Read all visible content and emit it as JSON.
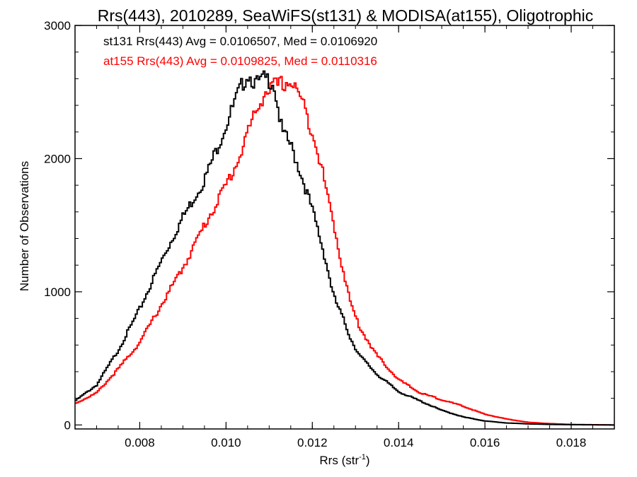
{
  "chart_data": {
    "type": "line",
    "title": "Rrs(443), 2010289, SeaWiFS(st131) & MODISA(at155), Oligotrophic",
    "xlabel": "Rrs (str",
    "xlabel_sup": "-1",
    "xlabel_end": ")",
    "ylabel": "Number of Observations",
    "xlim": [
      0.0065,
      0.019
    ],
    "ylim": [
      -30,
      3000
    ],
    "xticks": [
      0.008,
      0.01,
      0.012,
      0.014,
      0.016,
      0.018
    ],
    "xtick_labels": [
      "0.008",
      "0.010",
      "0.012",
      "0.014",
      "0.016",
      "0.018"
    ],
    "yticks": [
      0,
      1000,
      2000,
      3000
    ],
    "ytick_labels": [
      "0",
      "1000",
      "2000",
      "3000"
    ],
    "grid": false,
    "legend_position": "top-left",
    "annotations": [
      {
        "text": "st131 Rrs(443) Avg = 0.0106507, Med = 0.0106920",
        "color": "#000000"
      },
      {
        "text": "at155 Rrs(443) Avg = 0.0109825, Med = 0.0110316",
        "color": "#ff0000"
      }
    ],
    "series": [
      {
        "color": "#000000",
        "x": [
          0.0065,
          0.007,
          0.0075,
          0.008,
          0.0085,
          0.009,
          0.0095,
          0.01,
          0.0103,
          0.0105,
          0.0107,
          0.0109,
          0.0111,
          0.0113,
          0.0115,
          0.0117,
          0.0119,
          0.0121,
          0.0123,
          0.0125,
          0.0127,
          0.0129,
          0.0131,
          0.0135,
          0.014,
          0.0145,
          0.015,
          0.0155,
          0.016,
          0.0165,
          0.017,
          0.0175,
          0.018,
          0.0185,
          0.019
        ],
        "y": [
          180,
          300,
          560,
          870,
          1230,
          1560,
          1840,
          2250,
          2500,
          2640,
          2560,
          2600,
          2580,
          2200,
          2100,
          1920,
          1720,
          1500,
          1250,
          960,
          810,
          640,
          520,
          380,
          250,
          180,
          110,
          60,
          30,
          15,
          8,
          4,
          2,
          1,
          0
        ]
      },
      {
        "color": "#ff0000",
        "x": [
          0.0065,
          0.007,
          0.0075,
          0.008,
          0.0085,
          0.009,
          0.0095,
          0.01,
          0.0103,
          0.0105,
          0.0107,
          0.0109,
          0.0111,
          0.0113,
          0.0115,
          0.0117,
          0.0119,
          0.0121,
          0.0123,
          0.0125,
          0.0127,
          0.0129,
          0.0131,
          0.0135,
          0.014,
          0.0145,
          0.015,
          0.0155,
          0.016,
          0.0165,
          0.017,
          0.0175,
          0.018,
          0.0185,
          0.019
        ],
        "y": [
          160,
          240,
          420,
          620,
          900,
          1180,
          1500,
          1800,
          2000,
          2200,
          2350,
          2500,
          2540,
          2560,
          2580,
          2480,
          2300,
          2100,
          1800,
          1500,
          1180,
          900,
          730,
          520,
          340,
          240,
          190,
          140,
          80,
          45,
          20,
          10,
          4,
          2,
          0
        ]
      }
    ]
  }
}
